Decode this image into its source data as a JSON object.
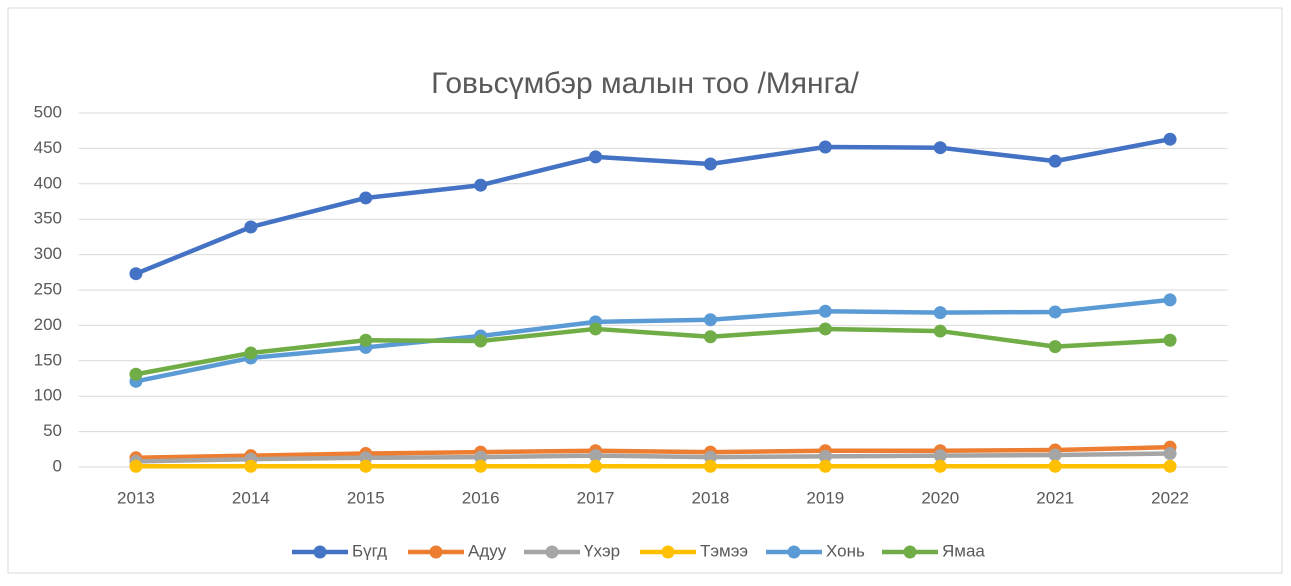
{
  "chart_data": {
    "type": "line",
    "title": "Говьсүмбэр малын тоо /Мянга/",
    "categories": [
      "2013",
      "2014",
      "2015",
      "2016",
      "2017",
      "2018",
      "2019",
      "2020",
      "2021",
      "2022"
    ],
    "series": [
      {
        "name": "Бүгд",
        "color": "#4472c4",
        "values": [
          273,
          339,
          380,
          398,
          438,
          428,
          452,
          451,
          432,
          463
        ]
      },
      {
        "name": "Адуу",
        "color": "#ed7d31",
        "values": [
          13,
          16,
          19,
          21,
          23,
          21,
          23,
          23,
          24,
          28
        ]
      },
      {
        "name": "Үхэр",
        "color": "#a5a5a5",
        "values": [
          8,
          11,
          13,
          14,
          16,
          14,
          15,
          16,
          17,
          19
        ]
      },
      {
        "name": "Тэмээ",
        "color": "#ffc000",
        "values": [
          1,
          1,
          1,
          1,
          1,
          1,
          1,
          1,
          1,
          1
        ]
      },
      {
        "name": "Хонь",
        "color": "#5b9bd5",
        "values": [
          121,
          154,
          169,
          185,
          205,
          208,
          220,
          218,
          219,
          236
        ]
      },
      {
        "name": "Ямаа",
        "color": "#70ad47",
        "values": [
          131,
          161,
          179,
          178,
          195,
          184,
          195,
          192,
          170,
          179
        ]
      }
    ],
    "ylim": [
      0,
      500
    ],
    "yticks": [
      0,
      50,
      100,
      150,
      200,
      250,
      300,
      350,
      400,
      450,
      500
    ],
    "grid": true,
    "legend": "bottom"
  }
}
